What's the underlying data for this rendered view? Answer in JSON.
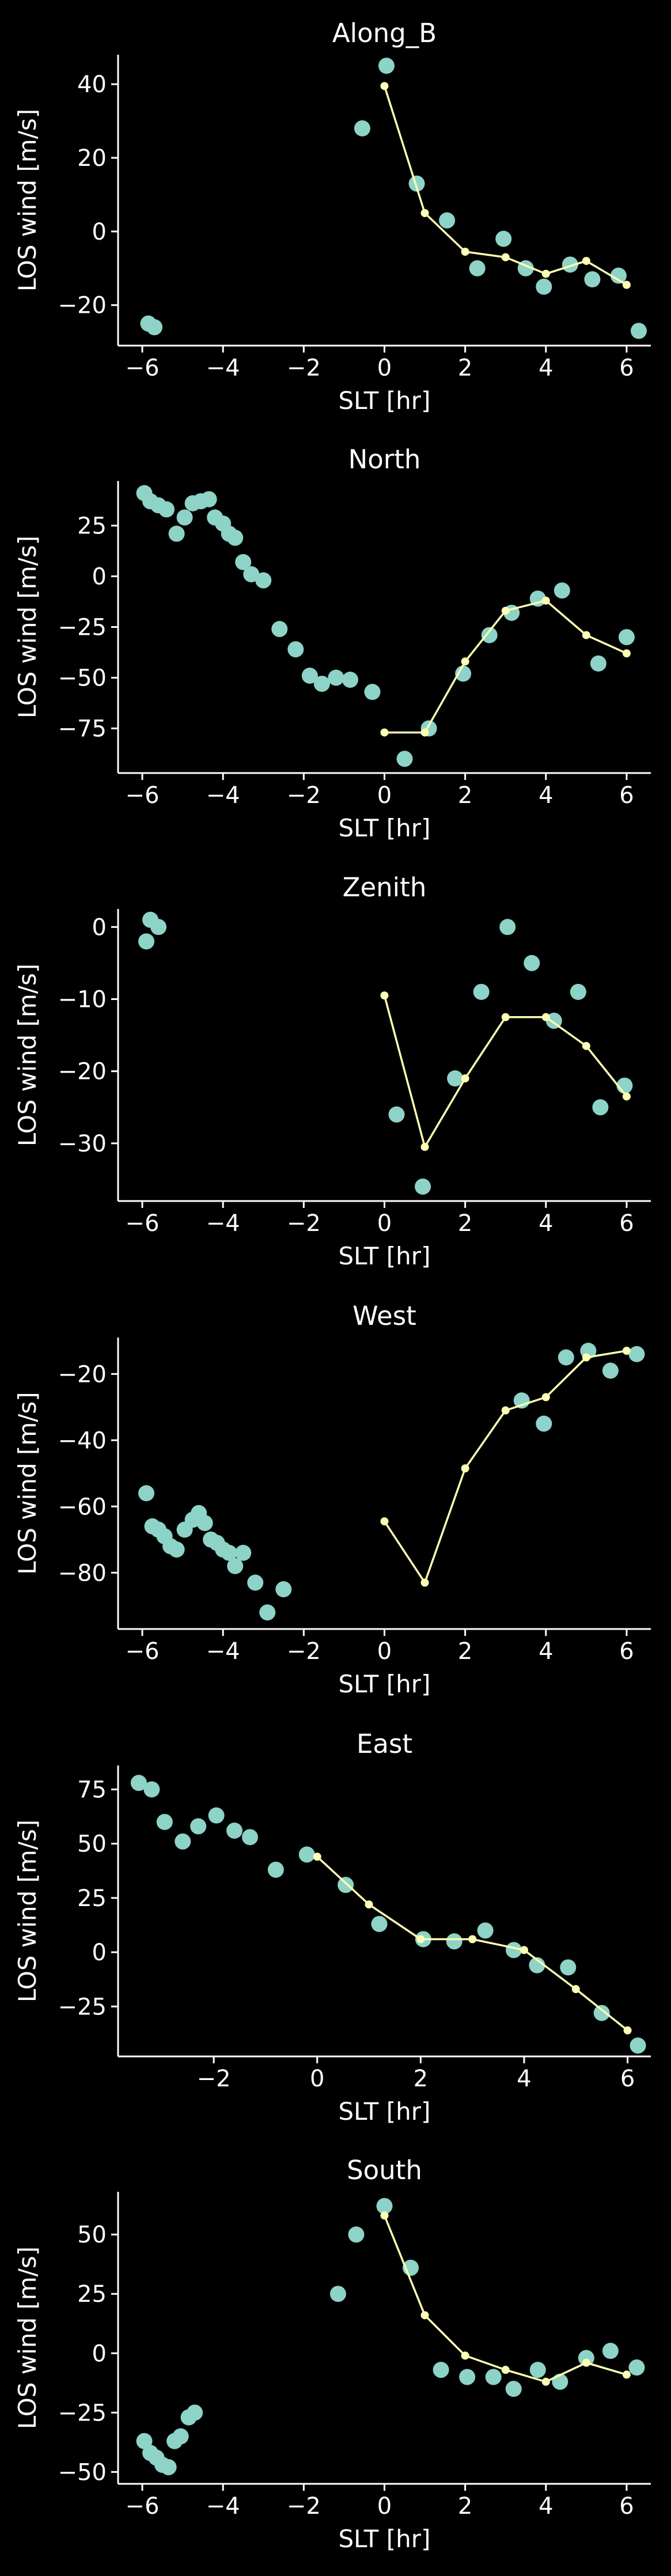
{
  "chart_data": [
    {
      "type": "scatter",
      "title": "Along_B",
      "xlabel": "SLT [hr]",
      "ylabel": "LOS wind [m/s]",
      "xlim": [
        -6.6,
        6.6
      ],
      "ylim": [
        -31,
        48
      ],
      "xticks": [
        -6,
        -4,
        -2,
        0,
        2,
        4,
        6
      ],
      "yticks": [
        -20,
        0,
        20,
        40
      ],
      "scatter": {
        "x": [
          -5.85,
          -5.7,
          -0.55,
          0.05,
          0.8,
          1.55,
          2.3,
          2.95,
          3.5,
          3.95,
          4.6,
          5.15,
          5.8,
          6.3
        ],
        "y": [
          -25,
          -26,
          28,
          45,
          13,
          3,
          -10,
          -2,
          -10,
          -15,
          -9,
          -13,
          -12,
          -27
        ]
      },
      "line": {
        "x": [
          0,
          1,
          2,
          3,
          4,
          5,
          6
        ],
        "y": [
          39.5,
          5,
          -5.5,
          -7,
          -11.5,
          -8,
          -14.5
        ]
      },
      "colors": {
        "scatter": "#8dd3c7",
        "line": "#ffffb3"
      }
    },
    {
      "type": "scatter",
      "title": "North",
      "xlabel": "SLT [hr]",
      "ylabel": "LOS wind [m/s]",
      "xlim": [
        -6.6,
        6.6
      ],
      "ylim": [
        -97,
        47
      ],
      "xticks": [
        -6,
        -4,
        -2,
        0,
        2,
        4,
        6
      ],
      "yticks": [
        -75,
        -50,
        -25,
        0,
        25
      ],
      "scatter": {
        "x": [
          -5.95,
          -5.8,
          -5.6,
          -5.4,
          -5.15,
          -4.95,
          -4.75,
          -4.55,
          -4.35,
          -4.2,
          -4.0,
          -3.85,
          -3.7,
          -3.5,
          -3.3,
          -3.0,
          -2.6,
          -2.2,
          -1.85,
          -1.55,
          -1.2,
          -0.85,
          -0.3,
          0.5,
          1.1,
          1.95,
          2.6,
          3.15,
          3.8,
          4.4,
          5.3,
          6.0
        ],
        "y": [
          41,
          37,
          35,
          33,
          21,
          29,
          36,
          37,
          38,
          29,
          26,
          21,
          19,
          7,
          1,
          -2,
          -26,
          -36,
          -49,
          -53,
          -50,
          -51,
          -57,
          -90,
          -75,
          -48,
          -29,
          -18,
          -11,
          -7,
          -43,
          -30
        ]
      },
      "line": {
        "x": [
          0,
          1,
          2,
          3,
          4,
          5,
          6
        ],
        "y": [
          -77,
          -77,
          -42,
          -17,
          -12,
          -29,
          -38
        ]
      },
      "colors": {
        "scatter": "#8dd3c7",
        "line": "#ffffb3"
      }
    },
    {
      "type": "scatter",
      "title": "Zenith",
      "xlabel": "SLT [hr]",
      "ylabel": "LOS wind [m/s]",
      "xlim": [
        -6.6,
        6.6
      ],
      "ylim": [
        -38,
        2.5
      ],
      "xticks": [
        -6,
        -4,
        -2,
        0,
        2,
        4,
        6
      ],
      "yticks": [
        -30,
        -20,
        -10,
        0
      ],
      "scatter": {
        "x": [
          -5.9,
          -5.8,
          -5.6,
          0.3,
          0.95,
          1.75,
          2.4,
          3.05,
          3.65,
          4.2,
          4.8,
          5.35,
          5.95
        ],
        "y": [
          -2,
          1,
          0,
          -26,
          -36,
          -21,
          -9,
          0,
          -5,
          -13,
          -9,
          -25,
          -22
        ]
      },
      "line": {
        "x": [
          0,
          1,
          2,
          3,
          4,
          5,
          6
        ],
        "y": [
          -9.5,
          -30.5,
          -21,
          -12.5,
          -12.5,
          -16.5,
          -23.5
        ]
      },
      "colors": {
        "scatter": "#8dd3c7",
        "line": "#ffffb3"
      }
    },
    {
      "type": "scatter",
      "title": "West",
      "xlabel": "SLT [hr]",
      "ylabel": "LOS wind [m/s]",
      "xlim": [
        -6.6,
        6.6
      ],
      "ylim": [
        -97,
        -9
      ],
      "xticks": [
        -6,
        -4,
        -2,
        0,
        2,
        4,
        6
      ],
      "yticks": [
        -80,
        -60,
        -40,
        -20
      ],
      "scatter": {
        "x": [
          -5.9,
          -5.75,
          -5.6,
          -5.45,
          -5.3,
          -5.15,
          -4.95,
          -4.75,
          -4.6,
          -4.45,
          -4.3,
          -4.15,
          -4.0,
          -3.85,
          -3.7,
          -3.5,
          -3.2,
          -2.9,
          -2.5,
          3.4,
          3.95,
          4.5,
          5.05,
          5.6,
          6.25
        ],
        "y": [
          -56,
          -66,
          -67,
          -69,
          -72,
          -73,
          -67,
          -64,
          -62,
          -65,
          -70,
          -71,
          -73,
          -74,
          -78,
          -74,
          -83,
          -92,
          -85,
          -28,
          -35,
          -15,
          -13,
          -19,
          -14
        ]
      },
      "line": {
        "x": [
          0,
          1,
          2,
          3,
          4,
          5,
          6
        ],
        "y": [
          -64.5,
          -83,
          -48.5,
          -31,
          -27,
          -15,
          -13
        ]
      },
      "colors": {
        "scatter": "#8dd3c7",
        "line": "#ffffb3"
      }
    },
    {
      "type": "scatter",
      "title": "East",
      "xlabel": "SLT [hr]",
      "ylabel": "LOS wind [m/s]",
      "xlim": [
        -3.85,
        6.45
      ],
      "ylim": [
        -48,
        86
      ],
      "xticks": [
        -2,
        0,
        2,
        4,
        6
      ],
      "yticks": [
        -25,
        0,
        25,
        50,
        75
      ],
      "scatter": {
        "x": [
          -3.45,
          -3.2,
          -2.95,
          -2.6,
          -2.3,
          -1.95,
          -1.6,
          -1.3,
          -0.8,
          -0.2,
          0.55,
          1.2,
          2.05,
          2.65,
          3.25,
          3.8,
          4.25,
          4.85,
          5.5,
          6.2
        ],
        "y": [
          78,
          75,
          60,
          51,
          58,
          63,
          56,
          53,
          38,
          45,
          31,
          13,
          6,
          5,
          10,
          1,
          -6,
          -7,
          -28,
          -43
        ]
      },
      "line": {
        "x": [
          0,
          1,
          2,
          3,
          4,
          5,
          6
        ],
        "y": [
          44,
          22,
          6,
          6,
          1,
          -17,
          -36
        ]
      },
      "colors": {
        "scatter": "#8dd3c7",
        "line": "#ffffb3"
      }
    },
    {
      "type": "scatter",
      "title": "South",
      "xlabel": "SLT [hr]",
      "ylabel": "LOS wind [m/s]",
      "xlim": [
        -6.6,
        6.6
      ],
      "ylim": [
        -55,
        68
      ],
      "xticks": [
        -6,
        -4,
        -2,
        0,
        2,
        4,
        6
      ],
      "yticks": [
        -50,
        -25,
        0,
        25,
        50
      ],
      "scatter": {
        "x": [
          -5.95,
          -5.8,
          -5.65,
          -5.5,
          -5.35,
          -5.2,
          -5.05,
          -4.85,
          -4.7,
          -1.15,
          -0.7,
          0.0,
          0.65,
          1.4,
          2.05,
          2.7,
          3.2,
          3.8,
          4.35,
          5.0,
          5.6,
          6.25
        ],
        "y": [
          -37,
          -42,
          -44,
          -47,
          -48,
          -37,
          -35,
          -27,
          -25,
          25,
          50,
          62,
          36,
          -7,
          -10,
          -10,
          -15,
          -7,
          -12,
          -2,
          1,
          -6
        ]
      },
      "line": {
        "x": [
          0,
          1,
          2,
          3,
          4,
          5,
          6
        ],
        "y": [
          58,
          16,
          -1,
          -7,
          -12,
          -4,
          -9
        ]
      },
      "colors": {
        "scatter": "#8dd3c7",
        "line": "#ffffb3"
      }
    }
  ],
  "colors": {
    "background": "#000000",
    "axes": "#ffffff",
    "text": "#ffffff"
  }
}
